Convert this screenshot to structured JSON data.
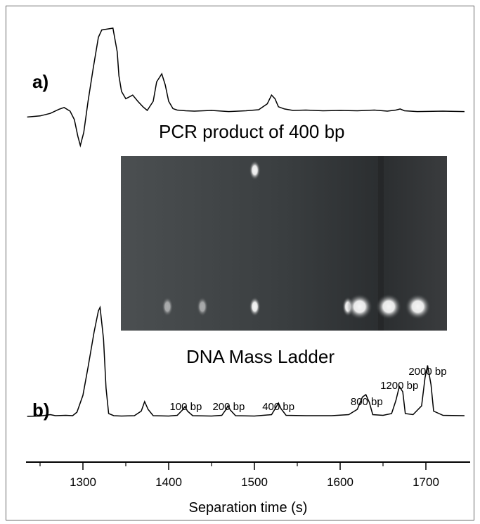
{
  "chart_data": {
    "type": "line",
    "xlabel": "Separation time (s)",
    "xlim": [
      1235,
      1745
    ],
    "x_ticks": [
      1300,
      1400,
      1500,
      1600,
      1700
    ],
    "panels": [
      {
        "label": "a)",
        "caption": "PCR product of 400 bp",
        "series": [
          {
            "x": [
              1235,
              1250,
              1262,
              1272,
              1278,
              1285,
              1290,
              1294,
              1297,
              1301,
              1306,
              1312,
              1318,
              1322,
              1335,
              1340,
              1342,
              1345,
              1350,
              1358,
              1364,
              1370,
              1375,
              1382,
              1386,
              1392,
              1396,
              1400,
              1405,
              1410,
              1415,
              1420,
              1430,
              1450,
              1470,
              1490,
              1505,
              1515,
              1520,
              1524,
              1528,
              1535,
              1545,
              1560,
              1580,
              1600,
              1620,
              1640,
              1655,
              1665,
              1670,
              1675,
              1690,
              1720,
              1745
            ],
            "y": [
              0.12,
              0.15,
              0.22,
              0.33,
              0.38,
              0.28,
              0.05,
              -0.4,
              -0.66,
              -0.3,
              0.55,
              1.45,
              2.3,
              2.5,
              2.55,
              1.9,
              1.25,
              0.82,
              0.62,
              0.72,
              0.55,
              0.4,
              0.3,
              0.55,
              1.08,
              1.3,
              1.0,
              0.55,
              0.35,
              0.31,
              0.3,
              0.29,
              0.28,
              0.3,
              0.27,
              0.29,
              0.32,
              0.48,
              0.72,
              0.62,
              0.4,
              0.34,
              0.3,
              0.31,
              0.29,
              0.3,
              0.29,
              0.31,
              0.28,
              0.31,
              0.34,
              0.29,
              0.27,
              0.28,
              0.27
            ]
          }
        ]
      },
      {
        "label": "b)",
        "caption": "DNA Mass Ladder",
        "series": [
          {
            "x": [
              1235,
              1250,
              1262,
              1268,
              1280,
              1288,
              1293,
              1300,
              1306,
              1313,
              1318,
              1320,
              1324,
              1327,
              1330,
              1336,
              1345,
              1360,
              1368,
              1372,
              1376,
              1382,
              1400,
              1410,
              1416,
              1419,
              1422,
              1428,
              1450,
              1462,
              1467,
              1469,
              1472,
              1478,
              1500,
              1520,
              1525,
              1528,
              1531,
              1537,
              1560,
              1590,
              1610,
              1620,
              1626,
              1630,
              1634,
              1638,
              1650,
              1660,
              1665,
              1669,
              1673,
              1676,
              1685,
              1695,
              1699,
              1702,
              1706,
              1709,
              1720,
              1745
            ],
            "y": [
              0.0,
              0.01,
              0.05,
              0.02,
              0.03,
              0.02,
              0.12,
              0.6,
              1.4,
              2.4,
              3.0,
              3.1,
              2.2,
              0.8,
              0.08,
              0.02,
              0.01,
              0.02,
              0.15,
              0.42,
              0.2,
              0.02,
              0.01,
              0.03,
              0.18,
              0.28,
              0.15,
              0.02,
              0.01,
              0.03,
              0.2,
              0.3,
              0.18,
              0.02,
              0.01,
              0.05,
              0.25,
              0.38,
              0.22,
              0.03,
              0.02,
              0.02,
              0.05,
              0.2,
              0.55,
              0.62,
              0.4,
              0.05,
              0.03,
              0.08,
              0.45,
              0.85,
              0.7,
              0.08,
              0.05,
              0.3,
              1.1,
              1.45,
              0.9,
              0.15,
              0.03,
              0.02
            ]
          }
        ],
        "annotations": [
          {
            "text": "100 bp",
            "x": 1420
          },
          {
            "text": "200 bp",
            "x": 1470
          },
          {
            "text": "400 bp",
            "x": 1528
          },
          {
            "text": "800 bp",
            "x": 1631
          },
          {
            "text": "1200 bp",
            "x": 1669
          },
          {
            "text": "2000 bp",
            "x": 1702
          }
        ]
      }
    ],
    "inset_gel": {
      "bands": [
        {
          "x": 1395,
          "lane": "top"
        },
        {
          "x": 1320,
          "lane": "bottom"
        },
        {
          "x": 1350,
          "lane": "bottom"
        },
        {
          "x": 1395,
          "lane": "bottom"
        },
        {
          "x": 1475,
          "lane": "bottom"
        },
        {
          "x": 1485,
          "lane": "bottom"
        },
        {
          "x": 1510,
          "lane": "bottom"
        },
        {
          "x": 1535,
          "lane": "bottom"
        }
      ]
    }
  }
}
